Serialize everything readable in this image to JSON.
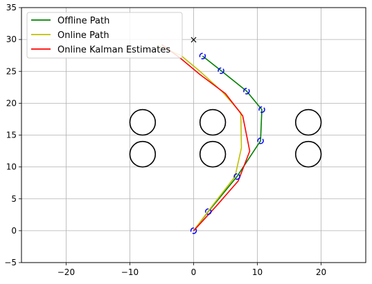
{
  "chart_data": {
    "type": "line",
    "xlim": [
      -27,
      27
    ],
    "ylim": [
      -5,
      35
    ],
    "x_ticks": [
      -20,
      -10,
      0,
      10,
      20
    ],
    "y_ticks": [
      -5,
      0,
      5,
      10,
      15,
      20,
      25,
      30,
      35
    ],
    "x_tick_labels": [
      "−20",
      "−10",
      "0",
      "10",
      "20"
    ],
    "y_tick_labels": [
      "−5",
      "0",
      "5",
      "10",
      "15",
      "20",
      "25",
      "30",
      "35"
    ],
    "grid": true,
    "legend_position": "upper-left",
    "series": [
      {
        "name": "Offline Path",
        "color": "#008000",
        "points": [
          [
            0,
            0
          ],
          [
            2.3,
            3.0
          ],
          [
            6.8,
            8.5
          ],
          [
            10.5,
            14.1
          ],
          [
            10.7,
            19.0
          ],
          [
            8.3,
            21.9
          ],
          [
            4.3,
            25.1
          ],
          [
            1.4,
            27.4
          ]
        ]
      },
      {
        "name": "Online Path",
        "color": "#bfbf00",
        "points": [
          [
            0,
            0
          ],
          [
            3.0,
            4.0
          ],
          [
            6.5,
            8.5
          ],
          [
            7.5,
            13.0
          ],
          [
            7.4,
            18.5
          ],
          [
            4.5,
            21.8
          ],
          [
            1.0,
            25.0
          ],
          [
            -2.0,
            27.5
          ],
          [
            -5.5,
            29.0
          ]
        ]
      },
      {
        "name": "Online Kalman Estimates",
        "color": "#ff0000",
        "points": [
          [
            0,
            0
          ],
          [
            3.5,
            3.8
          ],
          [
            7.0,
            7.8
          ],
          [
            8.8,
            12.5
          ],
          [
            7.7,
            18.0
          ],
          [
            5.0,
            21.5
          ],
          [
            1.0,
            24.5
          ],
          [
            -2.0,
            27.0
          ],
          [
            -5.0,
            29.2
          ]
        ]
      }
    ],
    "waypoints": {
      "color": "#0000ff",
      "points": [
        [
          0,
          0
        ],
        [
          2.3,
          3.0
        ],
        [
          6.8,
          8.5
        ],
        [
          10.5,
          14.1
        ],
        [
          10.7,
          19.0
        ],
        [
          8.3,
          21.9
        ],
        [
          4.3,
          25.1
        ],
        [
          1.4,
          27.4
        ]
      ]
    },
    "goal_marker": {
      "symbol": "×",
      "point": [
        0,
        30
      ]
    },
    "obstacles": {
      "radius": 2.0,
      "centers": [
        [
          -8,
          17
        ],
        [
          3,
          17
        ],
        [
          18,
          17
        ],
        [
          -8,
          12
        ],
        [
          3,
          12
        ],
        [
          18,
          12
        ]
      ]
    }
  }
}
